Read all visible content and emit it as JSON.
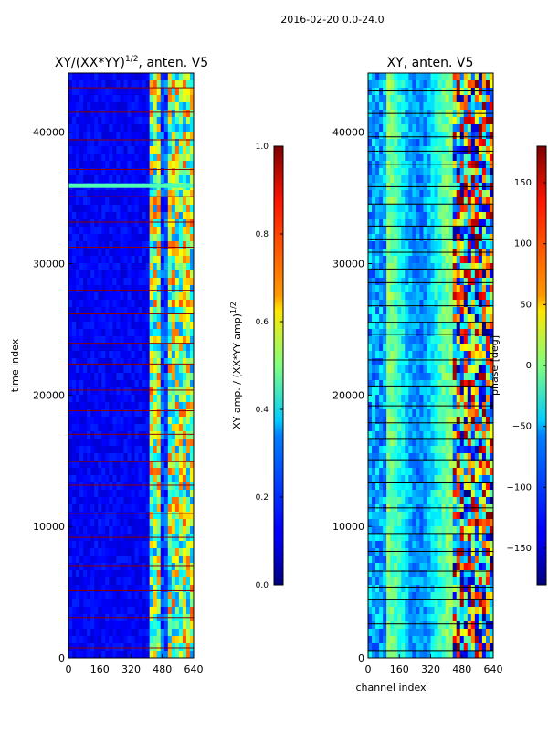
{
  "figure_title": "2016-02-20 0.0-24.0",
  "chart_data": [
    {
      "type": "heatmap",
      "title": "XY/(XX*YY)^1/2, anten. V5",
      "title_main": "XY/(XX*YY)",
      "title_sup": "1/2",
      "title_tail": ", anten. V5",
      "xlabel": "",
      "ylabel": "time index",
      "xlim": [
        0,
        640
      ],
      "ylim": [
        0,
        44500
      ],
      "x_ticks": [
        0,
        160,
        320,
        480,
        640
      ],
      "y_ticks": [
        0,
        10000,
        20000,
        30000,
        40000
      ],
      "colormap": "jet",
      "colorbar": {
        "label": "XY amp. / (XX*YY amp)^1/2",
        "label_main": "XY amp. / (XX*YY amp)",
        "label_sup": "1/2",
        "range": [
          0.0,
          1.0
        ],
        "ticks": [
          "0.0",
          "0.2",
          "0.4",
          "0.6",
          "0.8",
          "1.0"
        ],
        "tick_values": [
          0.0,
          0.2,
          0.4,
          0.6,
          0.8,
          1.0
        ]
      }
    },
    {
      "type": "heatmap",
      "title": "XY, anten. V5",
      "xlabel": "channel index",
      "ylabel": "",
      "xlim": [
        0,
        640
      ],
      "ylim": [
        0,
        44500
      ],
      "x_ticks": [
        0,
        160,
        320,
        480,
        640
      ],
      "y_ticks": [
        0,
        10000,
        20000,
        30000,
        40000
      ],
      "colormap": "jet",
      "colorbar": {
        "label": "phase [deg]",
        "range": [
          -180,
          180
        ],
        "ticks": [
          "−150",
          "−100",
          "−50",
          "0",
          "50",
          "100",
          "150"
        ],
        "tick_values": [
          -150,
          -100,
          -50,
          0,
          50,
          100,
          150
        ]
      }
    }
  ]
}
